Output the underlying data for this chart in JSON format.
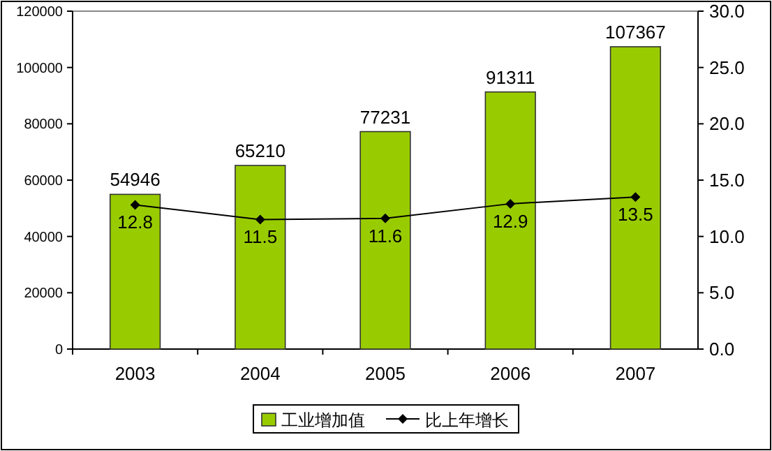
{
  "chart_data": {
    "type": "bar",
    "categories": [
      "2003",
      "2004",
      "2005",
      "2006",
      "2007"
    ],
    "series": [
      {
        "name": "工业增加值",
        "color": "#99cc00",
        "values": [
          54946,
          65210,
          77231,
          91311,
          107367
        ]
      },
      {
        "name": "比上年增长",
        "type": "line",
        "axis": "y2",
        "color": "#000000",
        "values": [
          12.8,
          11.5,
          11.6,
          12.9,
          13.5
        ]
      }
    ],
    "ylim": [
      0,
      120000
    ],
    "yticks": [
      0,
      20000,
      40000,
      60000,
      80000,
      100000,
      120000
    ],
    "y2lim": [
      0,
      30
    ],
    "y2ticks": [
      {
        "value": 0,
        "label": "0.0"
      },
      {
        "value": 5,
        "label": "5.0"
      },
      {
        "value": 10,
        "label": "10.0"
      },
      {
        "value": 15,
        "label": "15.0"
      },
      {
        "value": 20,
        "label": "20.0"
      },
      {
        "value": 25,
        "label": "25.0"
      },
      {
        "value": 30,
        "label": "30.0"
      }
    ],
    "data_labels": true,
    "legend": "bottom",
    "marker": "diamond",
    "grid": false
  }
}
